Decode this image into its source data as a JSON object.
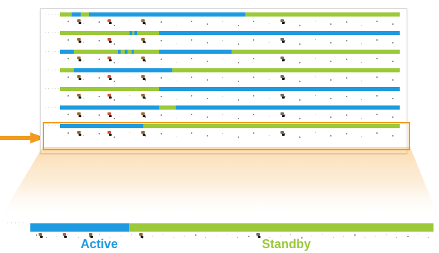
{
  "colors": {
    "active": "#1E9BE0",
    "standby": "#9BC93A",
    "highlight": "#F29A1B"
  },
  "labels": {
    "active": "Active",
    "standby": "Standby"
  },
  "rows": [
    {
      "id": "row-1",
      "label": "· · · · ·",
      "segments": [
        {
          "state": "standby",
          "from": 0.0,
          "to": 0.035
        },
        {
          "state": "active",
          "from": 0.035,
          "to": 0.06
        },
        {
          "state": "standby",
          "from": 0.06,
          "to": 0.085
        },
        {
          "state": "active",
          "from": 0.085,
          "to": 0.545
        },
        {
          "state": "standby",
          "from": 0.545,
          "to": 1.0
        }
      ]
    },
    {
      "id": "row-2",
      "label": "· · · · ·",
      "segments": [
        {
          "state": "standby",
          "from": 0.0,
          "to": 0.205
        },
        {
          "state": "active",
          "from": 0.205,
          "to": 0.212
        },
        {
          "state": "standby",
          "from": 0.212,
          "to": 0.22
        },
        {
          "state": "active",
          "from": 0.22,
          "to": 0.228
        },
        {
          "state": "standby",
          "from": 0.228,
          "to": 0.292
        },
        {
          "state": "active",
          "from": 0.292,
          "to": 1.0
        }
      ]
    },
    {
      "id": "row-3",
      "label": "· · · · ·",
      "segments": [
        {
          "state": "active",
          "from": 0.0,
          "to": 0.04
        },
        {
          "state": "standby",
          "from": 0.04,
          "to": 0.17
        },
        {
          "state": "active",
          "from": 0.17,
          "to": 0.178
        },
        {
          "state": "standby",
          "from": 0.178,
          "to": 0.19
        },
        {
          "state": "active",
          "from": 0.19,
          "to": 0.198
        },
        {
          "state": "standby",
          "from": 0.198,
          "to": 0.21
        },
        {
          "state": "active",
          "from": 0.21,
          "to": 0.218
        },
        {
          "state": "standby",
          "from": 0.218,
          "to": 0.292
        },
        {
          "state": "active",
          "from": 0.292,
          "to": 0.505
        },
        {
          "state": "standby",
          "from": 0.505,
          "to": 1.0
        }
      ]
    },
    {
      "id": "row-4",
      "label": "· · · · ·",
      "segments": [
        {
          "state": "standby",
          "from": 0.0,
          "to": 0.04
        },
        {
          "state": "active",
          "from": 0.04,
          "to": 0.33
        },
        {
          "state": "standby",
          "from": 0.33,
          "to": 1.0
        }
      ]
    },
    {
      "id": "row-5",
      "label": "· · · · ·",
      "segments": [
        {
          "state": "standby",
          "from": 0.0,
          "to": 0.292
        },
        {
          "state": "active",
          "from": 0.292,
          "to": 1.0
        }
      ]
    },
    {
      "id": "row-6",
      "label": "· · · · ·",
      "segments": [
        {
          "state": "active",
          "from": 0.0,
          "to": 0.292
        },
        {
          "state": "standby",
          "from": 0.292,
          "to": 0.34
        },
        {
          "state": "active",
          "from": 0.34,
          "to": 1.0
        }
      ]
    },
    {
      "id": "row-7",
      "label": "· · · · ·",
      "segments": [
        {
          "state": "active",
          "from": 0.0,
          "to": 0.245
        },
        {
          "state": "standby",
          "from": 0.245,
          "to": 1.0
        }
      ],
      "highlighted": true
    }
  ],
  "zoom": {
    "label": "· · · · ·",
    "segments": [
      {
        "state": "active",
        "from": 0.0,
        "to": 0.245
      },
      {
        "state": "standby",
        "from": 0.245,
        "to": 1.0
      }
    ]
  }
}
